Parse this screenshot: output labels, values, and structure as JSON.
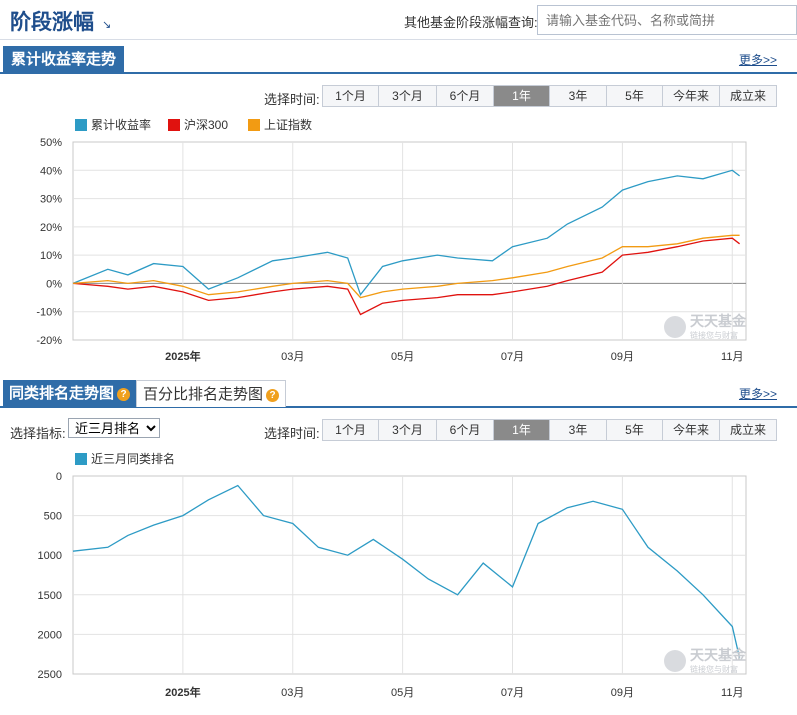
{
  "header": {
    "title": "阶段涨幅",
    "query_label": "其他基金阶段涨幅查询:",
    "query_placeholder": "请输入基金代码、名称或简拼"
  },
  "section1": {
    "tab_label": "累计收益率走势",
    "more_label": "更多>>",
    "time_label": "选择时间:",
    "ranges": [
      "1个月",
      "3个月",
      "6个月",
      "1年",
      "3年",
      "5年",
      "今年来",
      "成立来"
    ],
    "active_range": "1年"
  },
  "section2": {
    "tab_label": "同类排名走势图",
    "tab2_label": "百分比排名走势图",
    "more_label": "更多>>",
    "indicator_label": "选择指标:",
    "indicator_value": "近三月排名",
    "time_label": "选择时间:",
    "ranges": [
      "1个月",
      "3个月",
      "6个月",
      "1年",
      "3年",
      "5年",
      "今年来",
      "成立来"
    ],
    "active_range": "1年"
  },
  "watermark": {
    "name": "天天基金",
    "tagline": "链接您与财富"
  },
  "colors": {
    "fund": "#2d9bc5",
    "hs300": "#e0120f",
    "sh": "#f29b13",
    "brand": "#2f6ca8"
  },
  "chart_data": [
    {
      "type": "line",
      "x_ticks": [
        "2025年",
        "03月",
        "05月",
        "07月",
        "09月",
        "11月"
      ],
      "yticks": [
        "50%",
        "40%",
        "30%",
        "20%",
        "10%",
        "0%",
        "-10%",
        "-20%"
      ],
      "ylim": [
        -20,
        50
      ],
      "series": [
        {
          "name": "累计收益率",
          "x": [
            "2024-11",
            "2024-11-20",
            "2024-12",
            "2024-12-15",
            "2025-01",
            "2025-01-15",
            "2025-02",
            "2025-02-20",
            "2025-03",
            "2025-03-20",
            "2025-04-01",
            "2025-04-08",
            "2025-04-20",
            "2025-05",
            "2025-05-20",
            "2025-06",
            "2025-06-20",
            "2025-07",
            "2025-07-20",
            "2025-08",
            "2025-08-20",
            "2025-09",
            "2025-09-15",
            "2025-10",
            "2025-10-15",
            "2025-11",
            "2025-11-05"
          ],
          "values": [
            0,
            5,
            3,
            7,
            6,
            -2,
            2,
            8,
            9,
            11,
            9,
            -4,
            6,
            8,
            10,
            9,
            8,
            13,
            16,
            21,
            27,
            33,
            36,
            38,
            37,
            40,
            38
          ]
        },
        {
          "name": "沪深300",
          "x": [
            "2024-11",
            "2024-11-20",
            "2024-12",
            "2024-12-15",
            "2025-01",
            "2025-01-15",
            "2025-02",
            "2025-02-20",
            "2025-03",
            "2025-03-20",
            "2025-04-01",
            "2025-04-08",
            "2025-04-20",
            "2025-05",
            "2025-05-20",
            "2025-06",
            "2025-06-20",
            "2025-07",
            "2025-07-20",
            "2025-08",
            "2025-08-20",
            "2025-09",
            "2025-09-15",
            "2025-10",
            "2025-10-15",
            "2025-11",
            "2025-11-05"
          ],
          "values": [
            0,
            -1,
            -2,
            -1,
            -3,
            -6,
            -5,
            -3,
            -2,
            -1,
            -2,
            -11,
            -7,
            -6,
            -5,
            -4,
            -4,
            -3,
            -1,
            1,
            4,
            10,
            11,
            13,
            15,
            16,
            14
          ]
        },
        {
          "name": "上证指数",
          "x": [
            "2024-11",
            "2024-11-20",
            "2024-12",
            "2024-12-15",
            "2025-01",
            "2025-01-15",
            "2025-02",
            "2025-02-20",
            "2025-03",
            "2025-03-20",
            "2025-04-01",
            "2025-04-08",
            "2025-04-20",
            "2025-05",
            "2025-05-20",
            "2025-06",
            "2025-06-20",
            "2025-07",
            "2025-07-20",
            "2025-08",
            "2025-08-20",
            "2025-09",
            "2025-09-15",
            "2025-10",
            "2025-10-15",
            "2025-11",
            "2025-11-05"
          ],
          "values": [
            0,
            1,
            0,
            1,
            -1,
            -4,
            -3,
            -1,
            0,
            1,
            0,
            -5,
            -3,
            -2,
            -1,
            0,
            1,
            2,
            4,
            6,
            9,
            13,
            13,
            14,
            16,
            17,
            17
          ]
        }
      ]
    },
    {
      "type": "line",
      "x_ticks": [
        "2025年",
        "03月",
        "05月",
        "07月",
        "09月",
        "11月"
      ],
      "yticks": [
        "0",
        "500",
        "1000",
        "1500",
        "2000",
        "2500"
      ],
      "ylim": [
        2500,
        0
      ],
      "series": [
        {
          "name": "近三月同类排名",
          "x": [
            "2024-11",
            "2024-11-20",
            "2024-12",
            "2024-12-15",
            "2025-01",
            "2025-01-15",
            "2025-02",
            "2025-02-15",
            "2025-03",
            "2025-03-15",
            "2025-04-01",
            "2025-04-15",
            "2025-05",
            "2025-05-15",
            "2025-06",
            "2025-06-15",
            "2025-07",
            "2025-07-15",
            "2025-08",
            "2025-08-15",
            "2025-09",
            "2025-09-15",
            "2025-10",
            "2025-10-15",
            "2025-11",
            "2025-11-05"
          ],
          "values": [
            950,
            900,
            750,
            620,
            500,
            300,
            120,
            500,
            600,
            900,
            1000,
            800,
            1050,
            1300,
            1500,
            1100,
            1400,
            600,
            400,
            320,
            420,
            900,
            1200,
            1500,
            1900,
            2300
          ]
        }
      ]
    }
  ]
}
